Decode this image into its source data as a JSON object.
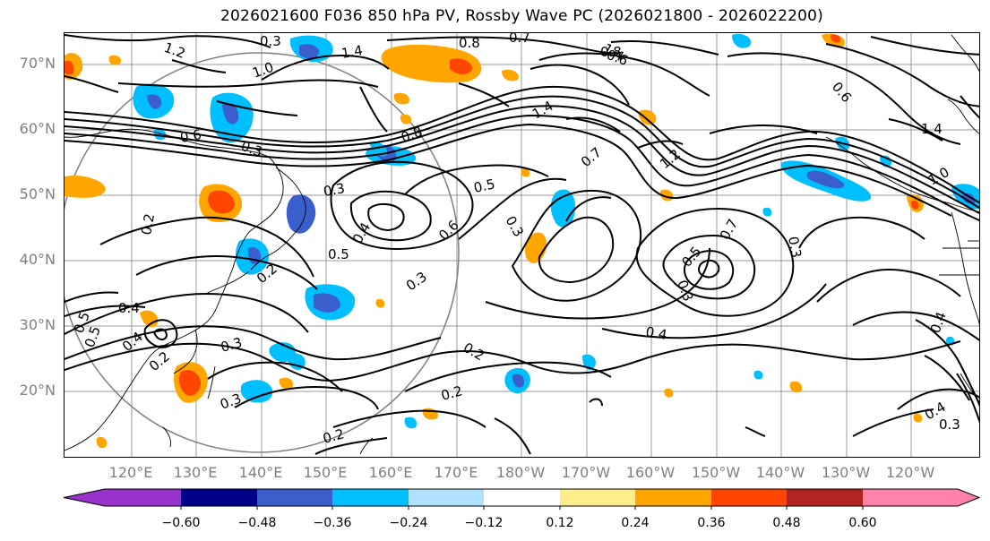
{
  "title": "2026021600 F036 850 hPa PV, Rossby Wave PC (2026021800 - 2026022200)",
  "lat_labels": [
    "70°N",
    "60°N",
    "50°N",
    "40°N",
    "30°N",
    "20°N"
  ],
  "lon_labels": [
    "120°E",
    "130°E",
    "140°E",
    "150°E",
    "160°E",
    "170°E",
    "180°W",
    "170°W",
    "160°W",
    "150°W",
    "140°W",
    "130°W",
    "120°W"
  ],
  "colorbar": {
    "tick_labels": [
      "−0.60",
      "−0.48",
      "−0.36",
      "−0.24",
      "−0.12",
      "0.12",
      "0.24",
      "0.36",
      "0.48",
      "0.60"
    ],
    "colors": [
      "#9932cc",
      "#00008b",
      "#3a5fcd",
      "#00bfff",
      "#b0e2ff",
      "#ffffff",
      "#ffec8b",
      "#ffa500",
      "#ff4500",
      "#b22222",
      "#ff82ab"
    ]
  },
  "contour_labels": [
    "1.2",
    "0.3",
    "0.8",
    "0.7",
    "1.4",
    "1.0",
    "1.4",
    "0.8",
    "1.4",
    "0.6",
    "0.8",
    "0.5",
    "0.3",
    "0.2",
    "0.4",
    "0.5",
    "0.6",
    "0.3",
    "0.4",
    "0.5",
    "0.2",
    "0.4",
    "0.3",
    "0.7",
    "0.3",
    "0.5",
    "0.4",
    "0.3",
    "0.3",
    "0.2",
    "0.2",
    "0.3",
    "0.2",
    "0.4",
    "0.5",
    "0.2",
    "0.3",
    "0.6",
    "1.2",
    "1.4",
    "0.4",
    "0.3",
    "0.7",
    "0.6",
    "1.0"
  ]
}
